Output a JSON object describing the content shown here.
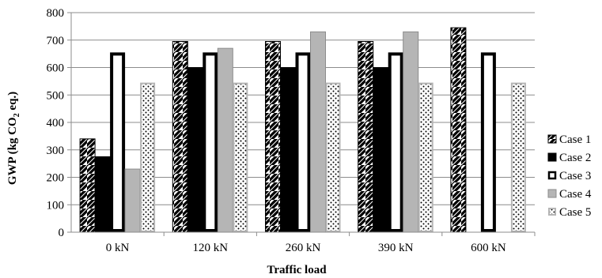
{
  "chart_data": {
    "type": "bar",
    "xlabel": "Traffic load",
    "ylabel_parts": [
      "GWP (kg CO",
      "2",
      " eq.)"
    ],
    "ylim": [
      0,
      800
    ],
    "yticks": [
      0,
      100,
      200,
      300,
      400,
      500,
      600,
      700,
      800
    ],
    "grid": true,
    "legend_position": "right",
    "categories": [
      "0 kN",
      "120 kN",
      "260 kN",
      "390 kN",
      "600 kN"
    ],
    "series": [
      {
        "name": "Case 1",
        "pattern": "diagonal-hatch",
        "values": [
          340,
          695,
          695,
          695,
          745
        ]
      },
      {
        "name": "Case 2",
        "pattern": "solid-black",
        "values": [
          275,
          600,
          600,
          600,
          null
        ]
      },
      {
        "name": "Case 3",
        "pattern": "hollow-thick-border",
        "values": [
          655,
          655,
          655,
          655,
          655
        ]
      },
      {
        "name": "Case 4",
        "pattern": "solid-gray",
        "values": [
          230,
          670,
          730,
          730,
          null
        ]
      },
      {
        "name": "Case 5",
        "pattern": "dotted",
        "values": [
          545,
          545,
          545,
          545,
          545
        ]
      }
    ]
  }
}
